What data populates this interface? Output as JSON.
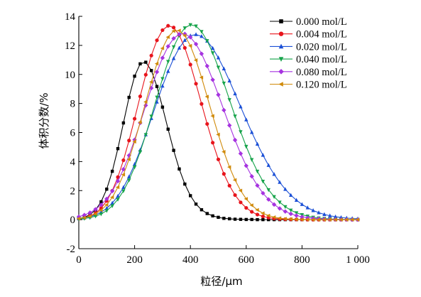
{
  "chart_data": {
    "type": "line",
    "xlabel": "粒径/μm",
    "ylabel": "体积分数/%",
    "xlim": [
      0,
      1000
    ],
    "ylim": [
      -2,
      14
    ],
    "x_ticks": [
      0,
      200,
      400,
      600,
      800,
      1000
    ],
    "x_tick_labels": [
      "0",
      "200",
      "400",
      "600",
      "800",
      "1 000"
    ],
    "y_ticks": [
      -2,
      0,
      2,
      4,
      6,
      8,
      10,
      12,
      14
    ],
    "y_tick_labels": [
      "-2",
      "0",
      "2",
      "4",
      "6",
      "8",
      "10",
      "12",
      "14"
    ],
    "grid": false,
    "legend_position": "top-right",
    "x": [
      0,
      20,
      40,
      60,
      80,
      100,
      120,
      140,
      160,
      180,
      200,
      220,
      240,
      260,
      280,
      300,
      320,
      340,
      360,
      380,
      400,
      420,
      440,
      460,
      480,
      500,
      520,
      540,
      560,
      580,
      600,
      620,
      640,
      660,
      680,
      700,
      720,
      740,
      760,
      780,
      800,
      820,
      840,
      860,
      880,
      900,
      920,
      940,
      960,
      980,
      1000
    ],
    "series": [
      {
        "name": "0.000 mol/L",
        "color": "#000000",
        "marker": "square",
        "values": [
          0.07,
          0.16,
          0.34,
          0.67,
          1.23,
          2.1,
          3.33,
          4.89,
          6.66,
          8.42,
          9.88,
          10.73,
          10.84,
          10.27,
          9.17,
          7.75,
          6.23,
          4.77,
          3.49,
          2.45,
          1.65,
          1.07,
          0.68,
          0.42,
          0.26,
          0.16,
          0.09,
          0.06,
          0.03,
          0.02,
          0.01,
          0.01,
          0.0,
          0.0,
          0.0,
          0.0,
          0.0,
          0.0,
          0.0,
          0.0,
          0.0,
          0.0,
          0.0,
          0.0,
          0.0,
          0.0,
          0.0,
          0.0,
          0.0,
          0.0,
          0.0
        ]
      },
      {
        "name": "0.004 mol/L",
        "color": "#e8141c",
        "marker": "circle",
        "values": [
          0.06,
          0.13,
          0.25,
          0.45,
          0.79,
          1.29,
          1.99,
          2.93,
          4.09,
          5.45,
          6.95,
          8.49,
          9.98,
          11.3,
          12.35,
          13.05,
          13.35,
          13.23,
          12.71,
          11.83,
          10.68,
          9.36,
          7.97,
          6.59,
          5.3,
          4.15,
          3.15,
          2.34,
          1.69,
          1.19,
          0.81,
          0.54,
          0.35,
          0.22,
          0.14,
          0.08,
          0.05,
          0.03,
          0.02,
          0.01,
          0.01,
          0.0,
          0.0,
          0.0,
          0.0,
          0.0,
          0.0,
          0.0,
          0.0,
          0.0,
          0.0
        ]
      },
      {
        "name": "0.020 mol/L",
        "color": "#1a4fd6",
        "marker": "triangle-up",
        "values": [
          0.07,
          0.12,
          0.2,
          0.32,
          0.51,
          0.78,
          1.14,
          1.62,
          2.22,
          2.95,
          3.81,
          4.79,
          5.85,
          6.97,
          8.1,
          9.2,
          10.21,
          11.1,
          11.82,
          12.35,
          12.66,
          12.75,
          12.62,
          12.3,
          11.8,
          11.15,
          10.39,
          9.56,
          8.67,
          7.77,
          6.88,
          6.01,
          5.2,
          4.44,
          3.74,
          3.12,
          2.57,
          2.09,
          1.68,
          1.34,
          1.05,
          0.82,
          0.63,
          0.48,
          0.36,
          0.27,
          0.2,
          0.15,
          0.11,
          0.08,
          0.06
        ]
      },
      {
        "name": "0.040 mol/L",
        "color": "#16a34a",
        "marker": "triangle-down",
        "values": [
          0.04,
          0.08,
          0.14,
          0.24,
          0.39,
          0.62,
          0.95,
          1.4,
          1.98,
          2.72,
          3.62,
          4.67,
          5.85,
          7.12,
          8.43,
          9.71,
          10.89,
          11.9,
          12.69,
          13.2,
          13.42,
          13.33,
          12.95,
          12.32,
          11.48,
          10.49,
          9.4,
          8.26,
          7.13,
          6.05,
          5.04,
          4.13,
          3.33,
          2.64,
          2.06,
          1.58,
          1.2,
          0.89,
          0.65,
          0.47,
          0.34,
          0.24,
          0.16,
          0.11,
          0.08,
          0.05,
          0.03,
          0.02,
          0.01,
          0.01,
          0.01
        ]
      },
      {
        "name": "0.080 mol/L",
        "color": "#a633e0",
        "marker": "diamond",
        "values": [
          0.2,
          0.32,
          0.48,
          0.71,
          1.02,
          1.43,
          1.97,
          2.65,
          3.47,
          4.42,
          5.5,
          6.66,
          7.87,
          9.06,
          10.17,
          11.14,
          11.93,
          12.48,
          12.77,
          12.79,
          12.56,
          12.09,
          11.42,
          10.58,
          9.63,
          8.6,
          7.54,
          6.49,
          5.48,
          4.55,
          3.71,
          2.98,
          2.35,
          1.82,
          1.39,
          1.04,
          0.77,
          0.56,
          0.4,
          0.28,
          0.19,
          0.13,
          0.09,
          0.06,
          0.04,
          0.02,
          0.02,
          0.01,
          0.01,
          0.0,
          0.0
        ]
      },
      {
        "name": "0.120 mol/L",
        "color": "#d08a0a",
        "marker": "triangle-left",
        "values": [
          0.07,
          0.13,
          0.23,
          0.4,
          0.65,
          1.02,
          1.54,
          2.23,
          3.1,
          4.15,
          5.37,
          6.71,
          8.11,
          9.48,
          10.74,
          11.8,
          12.57,
          12.99,
          13.02,
          12.67,
          11.97,
          10.98,
          9.79,
          8.47,
          7.14,
          5.86,
          4.67,
          3.62,
          2.73,
          2.0,
          1.43,
          0.99,
          0.67,
          0.44,
          0.28,
          0.17,
          0.1,
          0.06,
          0.04,
          0.02,
          0.01,
          0.01,
          0.0,
          0.0,
          0.0,
          0.0,
          0.0,
          0.0,
          0.0,
          0.0,
          0.0
        ]
      }
    ]
  }
}
